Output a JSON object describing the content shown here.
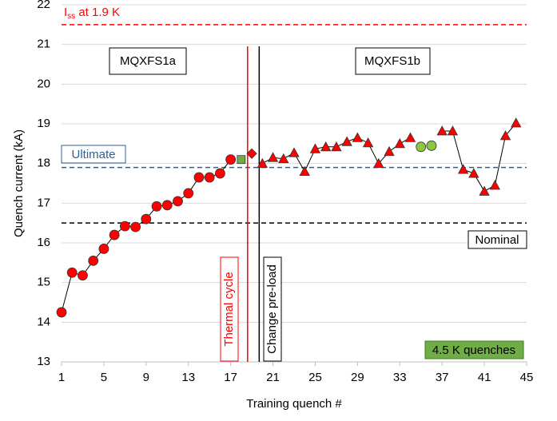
{
  "chart_data": {
    "type": "scatter",
    "x_label": "Training quench #",
    "y_label": "Quench current (kA)",
    "x": [
      1,
      2,
      3,
      4,
      5,
      6,
      7,
      8,
      9,
      10,
      11,
      12,
      13,
      14,
      15,
      16,
      17,
      18,
      19,
      20,
      21,
      22,
      23,
      24,
      25,
      26,
      27,
      28,
      29,
      30,
      31,
      32,
      33,
      34,
      35,
      36,
      37,
      38,
      39,
      40,
      41,
      42,
      43,
      44
    ],
    "xlim": [
      1,
      45
    ],
    "xticks": [
      1,
      5,
      9,
      13,
      17,
      21,
      25,
      29,
      33,
      37,
      41,
      45
    ],
    "ylim": [
      13,
      22
    ],
    "yticks": [
      13,
      14,
      15,
      16,
      17,
      18,
      19,
      20,
      21,
      22
    ],
    "grid": true,
    "series": [
      {
        "marker": "circle",
        "color": "#ff0000",
        "line": true,
        "values": [
          14.25,
          15.25,
          15.18,
          15.55,
          15.85,
          16.2,
          16.42,
          16.4,
          16.6,
          16.92,
          16.95,
          17.05,
          17.25,
          17.65,
          17.65,
          17.75,
          18.1,
          null,
          null,
          null,
          null,
          null,
          null,
          null,
          null,
          null,
          null,
          null,
          null,
          null,
          null,
          null,
          null,
          null,
          null,
          null,
          null,
          null,
          null,
          null,
          null,
          null,
          null,
          null
        ]
      },
      {
        "marker": "square",
        "color": "#70ad47",
        "line": false,
        "values": [
          null,
          null,
          null,
          null,
          null,
          null,
          null,
          null,
          null,
          null,
          null,
          null,
          null,
          null,
          null,
          null,
          null,
          18.1,
          null,
          null,
          null,
          null,
          null,
          null,
          null,
          null,
          null,
          null,
          null,
          null,
          null,
          null,
          null,
          null,
          null,
          null,
          null,
          null,
          null,
          null,
          null,
          null,
          null,
          null
        ]
      },
      {
        "marker": "diamond",
        "color": "#ff0000",
        "line": false,
        "values": [
          null,
          null,
          null,
          null,
          null,
          null,
          null,
          null,
          null,
          null,
          null,
          null,
          null,
          null,
          null,
          null,
          null,
          null,
          18.25,
          null,
          null,
          null,
          null,
          null,
          null,
          null,
          null,
          null,
          null,
          null,
          null,
          null,
          null,
          null,
          null,
          null,
          null,
          null,
          null,
          null,
          null,
          null,
          null,
          null
        ]
      },
      {
        "marker": "triangle",
        "color": "#ff0000",
        "line": true,
        "values": [
          null,
          null,
          null,
          null,
          null,
          null,
          null,
          null,
          null,
          null,
          null,
          null,
          null,
          null,
          null,
          null,
          null,
          null,
          null,
          18.0,
          18.15,
          18.12,
          18.27,
          17.8,
          18.37,
          18.42,
          18.42,
          18.55,
          18.65,
          18.52,
          18.0,
          18.3,
          18.5,
          18.65,
          null,
          null,
          18.82,
          18.82,
          17.85,
          17.75,
          17.3,
          17.45,
          18.7,
          19.02
        ]
      },
      {
        "marker": "circle",
        "color": "#8dc63f",
        "line": false,
        "values": [
          null,
          null,
          null,
          null,
          null,
          null,
          null,
          null,
          null,
          null,
          null,
          null,
          null,
          null,
          null,
          null,
          null,
          null,
          null,
          null,
          null,
          null,
          null,
          null,
          null,
          null,
          null,
          null,
          null,
          null,
          null,
          null,
          null,
          null,
          18.42,
          18.45,
          null,
          null,
          null,
          null,
          null,
          null,
          null,
          null
        ]
      }
    ],
    "hlines": [
      {
        "value": 21.5,
        "color": "#ff0000",
        "label": {
          "main": "I",
          "sub": "ss",
          "rest": " at 1.9 K"
        }
      },
      {
        "value": 17.9,
        "color": "#2e5f99",
        "label": "Ultimate"
      },
      {
        "value": 16.5,
        "color": "#000000",
        "label": "Nominal"
      }
    ],
    "vlines": [
      {
        "value": 18.6,
        "color": "#ff0000",
        "label": "Thermal cycle"
      },
      {
        "value": 19.7,
        "color": "#000000",
        "label": "Change pre-load"
      }
    ],
    "annotations": [
      "MQXFS1a",
      "MQXFS1b",
      "4.5 K quenches"
    ]
  }
}
